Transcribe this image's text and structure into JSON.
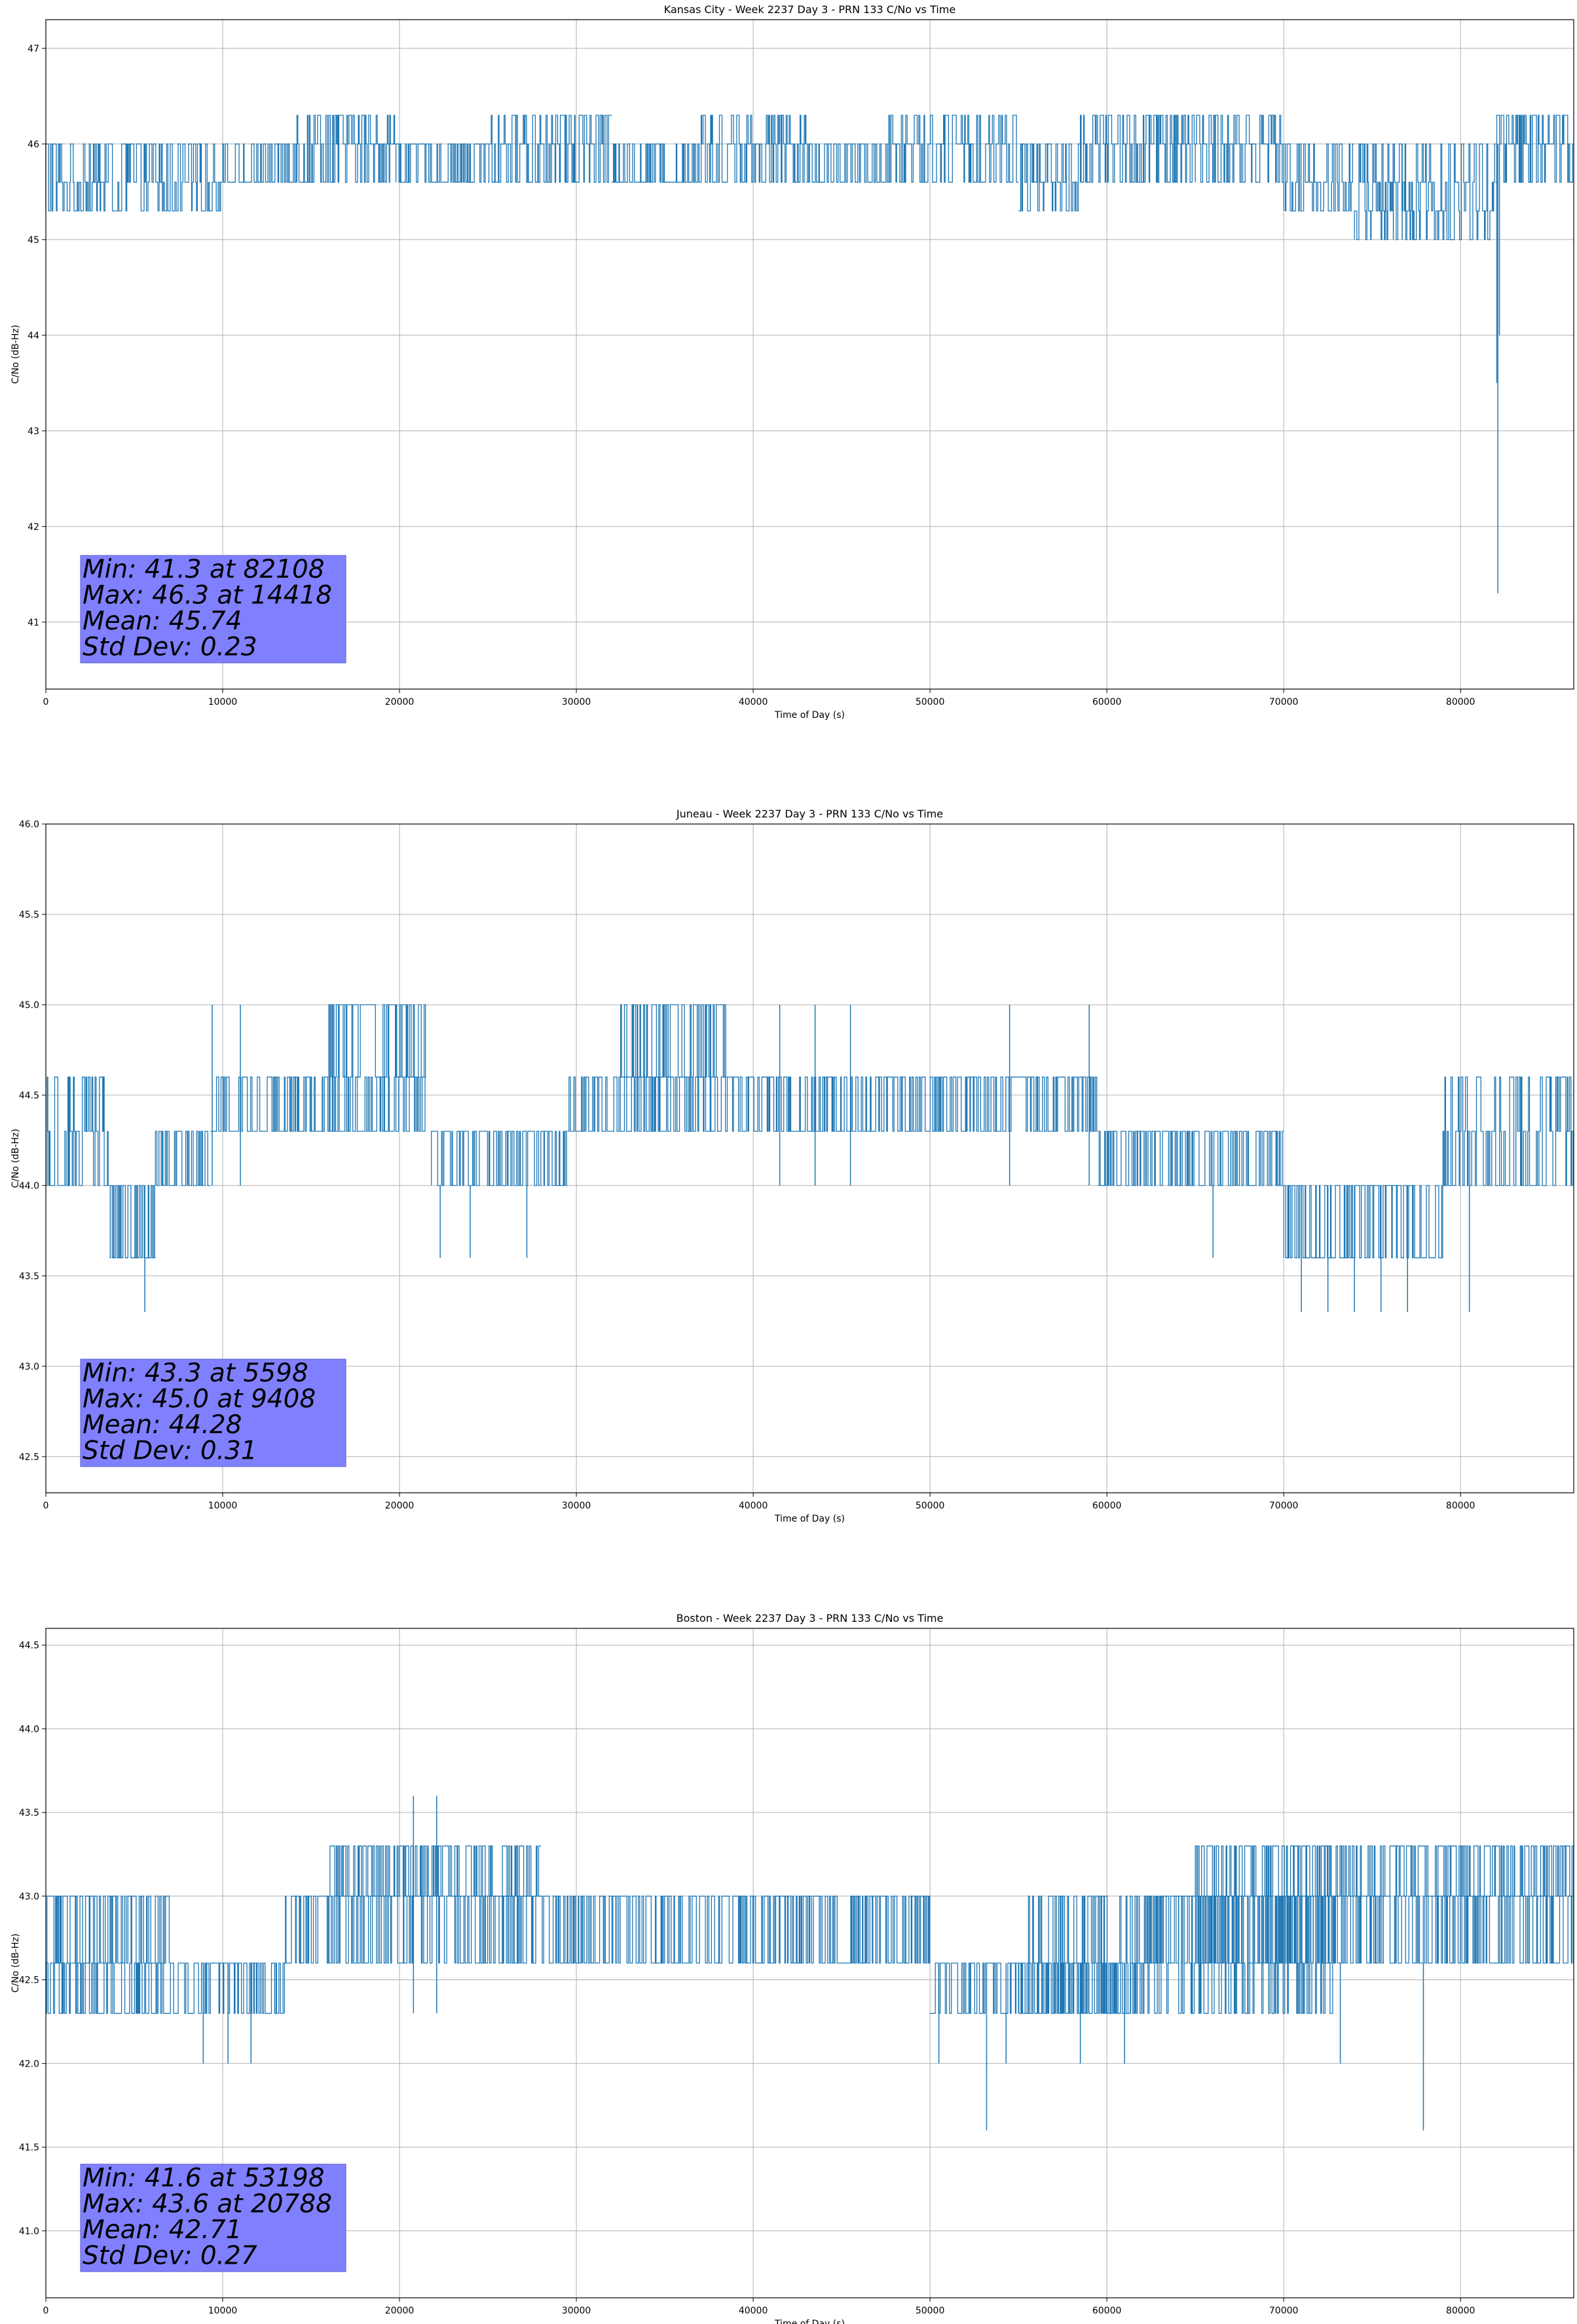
{
  "chart_data": [
    {
      "type": "line",
      "title": "Kansas City - Week 2237 Day 3 - PRN 133 C/No vs Time",
      "xlabel": "Time of Day (s)",
      "ylabel": "C/No (dB-Hz)",
      "xlim": [
        0,
        86400
      ],
      "ylim": [
        40.3,
        47.3
      ],
      "xticks": [
        0,
        10000,
        20000,
        30000,
        40000,
        50000,
        60000,
        70000,
        80000
      ],
      "yticks": [
        41,
        42,
        43,
        44,
        45,
        46,
        47
      ],
      "ytick_labels": [
        "41",
        "42",
        "43",
        "44",
        "45",
        "46",
        "47"
      ],
      "grid": true,
      "color": "#1f77b4",
      "stats_box": {
        "color": "#8080ff",
        "lines": [
          "Min: 41.3 at 82108",
          "Max: 46.3 at 14418",
          "Mean: 45.74",
          "Std Dev: 0.23"
        ]
      },
      "series": [
        {
          "segments": [
            {
              "x0": 0,
              "x1": 10000,
              "values": [
                45.3,
                45.6,
                46.0
              ]
            },
            {
              "x0": 10000,
              "x1": 14200,
              "values": [
                45.6,
                46.0
              ]
            },
            {
              "x0": 14200,
              "x1": 19800,
              "values": [
                45.6,
                46.0,
                46.3
              ]
            },
            {
              "x0": 19800,
              "x1": 25000,
              "values": [
                45.6,
                46.0
              ]
            },
            {
              "x0": 25000,
              "x1": 32000,
              "values": [
                45.6,
                46.0,
                46.3
              ]
            },
            {
              "x0": 32000,
              "x1": 37000,
              "values": [
                45.6,
                46.0
              ]
            },
            {
              "x0": 37000,
              "x1": 43000,
              "values": [
                45.6,
                46.0,
                46.3
              ]
            },
            {
              "x0": 43000,
              "x1": 47500,
              "values": [
                45.6,
                46.0
              ]
            },
            {
              "x0": 47500,
              "x1": 55000,
              "values": [
                45.6,
                46.0,
                46.3
              ]
            },
            {
              "x0": 55000,
              "x1": 58500,
              "values": [
                45.3,
                45.6,
                46.0
              ]
            },
            {
              "x0": 58500,
              "x1": 65000,
              "values": [
                45.6,
                46.0,
                46.3
              ]
            },
            {
              "x0": 65000,
              "x1": 70000,
              "values": [
                45.6,
                46.0,
                46.3
              ]
            },
            {
              "x0": 70000,
              "x1": 74000,
              "values": [
                45.3,
                45.6,
                46.0
              ]
            },
            {
              "x0": 74000,
              "x1": 82000,
              "values": [
                45.0,
                45.3,
                45.6,
                46.0
              ]
            },
            {
              "x0": 82000,
              "x1": 86400,
              "values": [
                45.6,
                46.0,
                46.3
              ]
            }
          ],
          "spikes": [
            {
              "x": 76200,
              "y": 45.0
            },
            {
              "x": 76700,
              "y": 45.0
            },
            {
              "x": 82108,
              "y": 41.3
            },
            {
              "x": 82050,
              "y": 43.5
            },
            {
              "x": 82200,
              "y": 44.0
            },
            {
              "x": 1600,
              "y": 45.3
            },
            {
              "x": 11000,
              "y": 45.3
            },
            {
              "x": 22300,
              "y": 45.3
            },
            {
              "x": 41500,
              "y": 45.3
            },
            {
              "x": 83700,
              "y": 45.3
            }
          ]
        }
      ]
    },
    {
      "type": "line",
      "title": "Juneau - Week 2237 Day 3 - PRN 133 C/No vs Time",
      "xlabel": "Time of Day (s)",
      "ylabel": "C/No (dB-Hz)",
      "xlim": [
        0,
        86400
      ],
      "ylim": [
        42.3,
        46.0
      ],
      "xticks": [
        0,
        10000,
        20000,
        30000,
        40000,
        50000,
        60000,
        70000,
        80000
      ],
      "yticks": [
        42.5,
        43.0,
        43.5,
        44.0,
        44.5,
        45.0,
        45.5,
        46.0
      ],
      "ytick_labels": [
        "42.5",
        "43.0",
        "43.5",
        "44.0",
        "44.5",
        "45.0",
        "45.5",
        "46.0"
      ],
      "grid": true,
      "color": "#1f77b4",
      "stats_box": {
        "color": "#8080ff",
        "lines": [
          "Min: 43.3 at 5598",
          "Max: 45.0 at 9408",
          "Mean: 44.28",
          "Std Dev: 0.31"
        ]
      },
      "series": [
        {
          "segments": [
            {
              "x0": 0,
              "x1": 3600,
              "values": [
                44.0,
                44.3,
                44.6
              ]
            },
            {
              "x0": 3600,
              "x1": 6200,
              "values": [
                43.6,
                44.0
              ]
            },
            {
              "x0": 6200,
              "x1": 9300,
              "values": [
                44.0,
                44.3
              ]
            },
            {
              "x0": 9300,
              "x1": 21500,
              "values": [
                44.3,
                44.6
              ]
            },
            {
              "x0": 16000,
              "x1": 21500,
              "values": [
                44.6,
                45.0
              ]
            },
            {
              "x0": 21800,
              "x1": 29500,
              "values": [
                44.0,
                44.3
              ]
            },
            {
              "x0": 29500,
              "x1": 59500,
              "values": [
                44.3,
                44.6
              ]
            },
            {
              "x0": 32500,
              "x1": 38500,
              "values": [
                44.6,
                45.0
              ]
            },
            {
              "x0": 59500,
              "x1": 70000,
              "values": [
                44.0,
                44.3
              ]
            },
            {
              "x0": 70000,
              "x1": 79000,
              "values": [
                43.6,
                44.0
              ]
            },
            {
              "x0": 79000,
              "x1": 86400,
              "values": [
                44.0,
                44.3,
                44.6
              ]
            }
          ],
          "spikes": [
            {
              "x": 5598,
              "y": 43.3
            },
            {
              "x": 71000,
              "y": 43.3
            },
            {
              "x": 72500,
              "y": 43.3
            },
            {
              "x": 74000,
              "y": 43.3
            },
            {
              "x": 75500,
              "y": 43.3
            },
            {
              "x": 77000,
              "y": 43.3
            },
            {
              "x": 80500,
              "y": 43.3
            },
            {
              "x": 9408,
              "y": 45.0
            },
            {
              "x": 11000,
              "y": 45.0
            },
            {
              "x": 41500,
              "y": 45.0
            },
            {
              "x": 43500,
              "y": 45.0
            },
            {
              "x": 45500,
              "y": 45.0
            },
            {
              "x": 54500,
              "y": 45.0
            },
            {
              "x": 59000,
              "y": 45.0
            },
            {
              "x": 22300,
              "y": 43.6
            },
            {
              "x": 24000,
              "y": 43.6
            },
            {
              "x": 27200,
              "y": 43.6
            },
            {
              "x": 66000,
              "y": 43.6
            }
          ]
        }
      ]
    },
    {
      "type": "line",
      "title": "Boston - Week 2237 Day 3 - PRN 133 C/No vs Time",
      "xlabel": "Time of Day (s)",
      "ylabel": "C/No (dB-Hz)",
      "xlim": [
        0,
        86400
      ],
      "ylim": [
        40.6,
        44.6
      ],
      "xticks": [
        0,
        10000,
        20000,
        30000,
        40000,
        50000,
        60000,
        70000,
        80000
      ],
      "yticks": [
        41.0,
        41.5,
        42.0,
        42.5,
        43.0,
        43.5,
        44.0,
        44.5
      ],
      "ytick_labels": [
        "41.0",
        "41.5",
        "42.0",
        "42.5",
        "43.0",
        "43.5",
        "44.0",
        "44.5"
      ],
      "grid": true,
      "color": "#1f77b4",
      "stats_box": {
        "color": "#8080ff",
        "lines": [
          "Min: 41.6 at 53198",
          "Max: 43.6 at 20788",
          "Mean: 42.71",
          "Std Dev: 0.27"
        ]
      },
      "series": [
        {
          "segments": [
            {
              "x0": 0,
              "x1": 13500,
              "values": [
                42.3,
                42.6
              ]
            },
            {
              "x0": 0,
              "x1": 7000,
              "values": [
                42.6,
                43.0
              ]
            },
            {
              "x0": 13500,
              "x1": 50000,
              "values": [
                42.6,
                43.0
              ]
            },
            {
              "x0": 16000,
              "x1": 28000,
              "values": [
                43.0,
                43.3
              ]
            },
            {
              "x0": 50000,
              "x1": 62000,
              "values": [
                42.3,
                42.6
              ]
            },
            {
              "x0": 55000,
              "x1": 73000,
              "values": [
                42.3,
                42.6,
                43.0
              ]
            },
            {
              "x0": 62000,
              "x1": 86400,
              "values": [
                42.6,
                43.0
              ]
            },
            {
              "x0": 65000,
              "x1": 86400,
              "values": [
                43.0,
                43.3
              ]
            }
          ],
          "spikes": [
            {
              "x": 53198,
              "y": 41.6
            },
            {
              "x": 77900,
              "y": 41.6
            },
            {
              "x": 20788,
              "y": 43.6
            },
            {
              "x": 22100,
              "y": 43.6
            },
            {
              "x": 8900,
              "y": 42.0
            },
            {
              "x": 10300,
              "y": 42.0
            },
            {
              "x": 11600,
              "y": 42.0
            },
            {
              "x": 50500,
              "y": 42.0
            },
            {
              "x": 54300,
              "y": 42.0
            },
            {
              "x": 58500,
              "y": 42.0
            },
            {
              "x": 61000,
              "y": 42.0
            },
            {
              "x": 73200,
              "y": 42.0
            }
          ]
        }
      ]
    }
  ]
}
